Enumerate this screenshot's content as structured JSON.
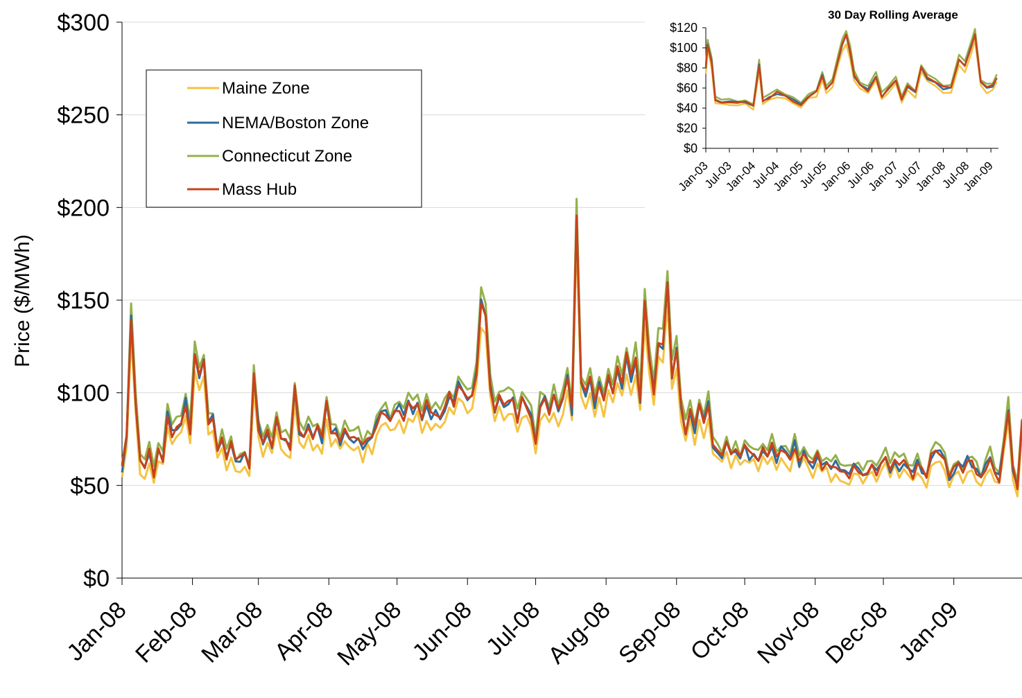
{
  "chart_data": [
    {
      "type": "line",
      "title": "",
      "ylabel": "Price ($/MWh)",
      "xlabel": "",
      "ylim": [
        0,
        300
      ],
      "ytick_labels": [
        "$0",
        "$50",
        "$100",
        "$150",
        "$200",
        "$250",
        "$300"
      ],
      "yticks": [
        0,
        50,
        100,
        150,
        200,
        250,
        300
      ],
      "x_tick_labels": [
        "Jan-08",
        "Feb-08",
        "Mar-08",
        "Apr-08",
        "May-08",
        "Jun-08",
        "Jul-08",
        "Aug-08",
        "Sep-08",
        "Oct-08",
        "Nov-08",
        "Dec-08",
        "Jan-09"
      ],
      "x_tick_dates": [
        "2008-01-01",
        "2008-02-01",
        "2008-03-01",
        "2008-04-01",
        "2008-05-01",
        "2008-06-01",
        "2008-07-01",
        "2008-08-01",
        "2008-09-01",
        "2008-10-01",
        "2008-11-01",
        "2008-12-01",
        "2009-01-01"
      ],
      "x_range": [
        "2008-01-01",
        "2009-01-31"
      ],
      "grid": "horizontal",
      "legend_position": "top-left",
      "mass_hub_anchor": [
        [
          "2008-01-01",
          58
        ],
        [
          "2008-01-03",
          75
        ],
        [
          "2008-01-05",
          140
        ],
        [
          "2008-01-07",
          95
        ],
        [
          "2008-01-09",
          62
        ],
        [
          "2008-01-11",
          60
        ],
        [
          "2008-01-13",
          68
        ],
        [
          "2008-01-15",
          56
        ],
        [
          "2008-01-17",
          70
        ],
        [
          "2008-01-19",
          64
        ],
        [
          "2008-01-21",
          88
        ],
        [
          "2008-01-23",
          78
        ],
        [
          "2008-01-25",
          82
        ],
        [
          "2008-01-27",
          84
        ],
        [
          "2008-01-29",
          95
        ],
        [
          "2008-01-31",
          80
        ],
        [
          "2008-02-02",
          122
        ],
        [
          "2008-02-04",
          108
        ],
        [
          "2008-02-06",
          117
        ],
        [
          "2008-02-08",
          84
        ],
        [
          "2008-02-10",
          86
        ],
        [
          "2008-02-12",
          68
        ],
        [
          "2008-02-14",
          75
        ],
        [
          "2008-02-16",
          64
        ],
        [
          "2008-02-18",
          72
        ],
        [
          "2008-02-20",
          62
        ],
        [
          "2008-02-22",
          64
        ],
        [
          "2008-02-24",
          66
        ],
        [
          "2008-02-26",
          60
        ],
        [
          "2008-02-28",
          108
        ],
        [
          "2008-03-01",
          82
        ],
        [
          "2008-03-03",
          72
        ],
        [
          "2008-03-05",
          78
        ],
        [
          "2008-03-07",
          72
        ],
        [
          "2008-03-09",
          86
        ],
        [
          "2008-03-11",
          76
        ],
        [
          "2008-03-13",
          74
        ],
        [
          "2008-03-15",
          70
        ],
        [
          "2008-03-17",
          102
        ],
        [
          "2008-03-19",
          80
        ],
        [
          "2008-03-21",
          78
        ],
        [
          "2008-03-23",
          82
        ],
        [
          "2008-03-25",
          76
        ],
        [
          "2008-03-27",
          80
        ],
        [
          "2008-03-29",
          74
        ],
        [
          "2008-03-31",
          94
        ],
        [
          "2008-04-02",
          78
        ],
        [
          "2008-04-04",
          80
        ],
        [
          "2008-04-06",
          74
        ],
        [
          "2008-04-08",
          80
        ],
        [
          "2008-04-10",
          76
        ],
        [
          "2008-04-12",
          74
        ],
        [
          "2008-04-14",
          76
        ],
        [
          "2008-04-16",
          70
        ],
        [
          "2008-04-18",
          76
        ],
        [
          "2008-04-20",
          74
        ],
        [
          "2008-04-22",
          82
        ],
        [
          "2008-04-24",
          88
        ],
        [
          "2008-04-26",
          90
        ],
        [
          "2008-04-28",
          84
        ],
        [
          "2008-04-30",
          88
        ],
        [
          "2008-05-02",
          92
        ],
        [
          "2008-05-04",
          86
        ],
        [
          "2008-05-06",
          94
        ],
        [
          "2008-05-08",
          90
        ],
        [
          "2008-05-10",
          96
        ],
        [
          "2008-05-12",
          86
        ],
        [
          "2008-05-14",
          94
        ],
        [
          "2008-05-16",
          88
        ],
        [
          "2008-05-18",
          90
        ],
        [
          "2008-05-20",
          86
        ],
        [
          "2008-05-22",
          92
        ],
        [
          "2008-05-24",
          98
        ],
        [
          "2008-05-26",
          94
        ],
        [
          "2008-05-28",
          104
        ],
        [
          "2008-05-30",
          100
        ],
        [
          "2008-06-01",
          96
        ],
        [
          "2008-06-03",
          100
        ],
        [
          "2008-06-05",
          112
        ],
        [
          "2008-06-07",
          148
        ],
        [
          "2008-06-09",
          140
        ],
        [
          "2008-06-11",
          104
        ],
        [
          "2008-06-13",
          90
        ],
        [
          "2008-06-15",
          98
        ],
        [
          "2008-06-17",
          94
        ],
        [
          "2008-06-19",
          96
        ],
        [
          "2008-06-21",
          95
        ],
        [
          "2008-06-23",
          86
        ],
        [
          "2008-06-25",
          96
        ],
        [
          "2008-06-27",
          94
        ],
        [
          "2008-06-29",
          88
        ],
        [
          "2008-07-01",
          74
        ],
        [
          "2008-07-03",
          94
        ],
        [
          "2008-07-05",
          96
        ],
        [
          "2008-07-07",
          90
        ],
        [
          "2008-07-09",
          98
        ],
        [
          "2008-07-11",
          90
        ],
        [
          "2008-07-13",
          98
        ],
        [
          "2008-07-15",
          110
        ],
        [
          "2008-07-17",
          90
        ],
        [
          "2008-07-19",
          197
        ],
        [
          "2008-07-21",
          104
        ],
        [
          "2008-07-23",
          100
        ],
        [
          "2008-07-25",
          108
        ],
        [
          "2008-07-27",
          94
        ],
        [
          "2008-07-29",
          104
        ],
        [
          "2008-07-31",
          96
        ],
        [
          "2008-08-02",
          108
        ],
        [
          "2008-08-04",
          100
        ],
        [
          "2008-08-06",
          112
        ],
        [
          "2008-08-08",
          104
        ],
        [
          "2008-08-10",
          120
        ],
        [
          "2008-08-12",
          108
        ],
        [
          "2008-08-14",
          120
        ],
        [
          "2008-08-16",
          96
        ],
        [
          "2008-08-18",
          150
        ],
        [
          "2008-08-20",
          118
        ],
        [
          "2008-08-22",
          100
        ],
        [
          "2008-08-24",
          128
        ],
        [
          "2008-08-26",
          126
        ],
        [
          "2008-08-28",
          158
        ],
        [
          "2008-08-30",
          110
        ],
        [
          "2008-09-01",
          125
        ],
        [
          "2008-09-03",
          92
        ],
        [
          "2008-09-05",
          80
        ],
        [
          "2008-09-07",
          92
        ],
        [
          "2008-09-09",
          80
        ],
        [
          "2008-09-11",
          92
        ],
        [
          "2008-09-13",
          84
        ],
        [
          "2008-09-15",
          94
        ],
        [
          "2008-09-17",
          72
        ],
        [
          "2008-09-19",
          70
        ],
        [
          "2008-09-21",
          66
        ],
        [
          "2008-09-23",
          72
        ],
        [
          "2008-09-25",
          66
        ],
        [
          "2008-09-27",
          70
        ],
        [
          "2008-09-29",
          64
        ],
        [
          "2008-10-01",
          70
        ],
        [
          "2008-10-03",
          66
        ],
        [
          "2008-10-05",
          68
        ],
        [
          "2008-10-07",
          64
        ],
        [
          "2008-10-09",
          70
        ],
        [
          "2008-10-11",
          66
        ],
        [
          "2008-10-13",
          72
        ],
        [
          "2008-10-15",
          64
        ],
        [
          "2008-10-17",
          70
        ],
        [
          "2008-10-19",
          66
        ],
        [
          "2008-10-21",
          64
        ],
        [
          "2008-10-23",
          72
        ],
        [
          "2008-10-25",
          62
        ],
        [
          "2008-10-27",
          68
        ],
        [
          "2008-10-29",
          62
        ],
        [
          "2008-10-31",
          60
        ],
        [
          "2008-11-02",
          66
        ],
        [
          "2008-11-04",
          60
        ],
        [
          "2008-11-06",
          62
        ],
        [
          "2008-11-08",
          58
        ],
        [
          "2008-11-10",
          62
        ],
        [
          "2008-11-12",
          58
        ],
        [
          "2008-11-14",
          58
        ],
        [
          "2008-11-16",
          56
        ],
        [
          "2008-11-18",
          60
        ],
        [
          "2008-11-20",
          58
        ],
        [
          "2008-11-22",
          56
        ],
        [
          "2008-11-24",
          58
        ],
        [
          "2008-11-26",
          60
        ],
        [
          "2008-11-28",
          56
        ],
        [
          "2008-11-30",
          64
        ],
        [
          "2008-12-02",
          66
        ],
        [
          "2008-12-04",
          58
        ],
        [
          "2008-12-06",
          64
        ],
        [
          "2008-12-08",
          60
        ],
        [
          "2008-12-10",
          62
        ],
        [
          "2008-12-12",
          58
        ],
        [
          "2008-12-14",
          56
        ],
        [
          "2008-12-16",
          64
        ],
        [
          "2008-12-18",
          58
        ],
        [
          "2008-12-20",
          54
        ],
        [
          "2008-12-22",
          66
        ],
        [
          "2008-12-24",
          70
        ],
        [
          "2008-12-26",
          68
        ],
        [
          "2008-12-28",
          64
        ],
        [
          "2008-12-30",
          54
        ],
        [
          "2009-01-01",
          58
        ],
        [
          "2009-01-03",
          62
        ],
        [
          "2009-01-05",
          58
        ],
        [
          "2009-01-07",
          64
        ],
        [
          "2009-01-09",
          62
        ],
        [
          "2009-01-11",
          58
        ],
        [
          "2009-01-13",
          54
        ],
        [
          "2009-01-15",
          60
        ],
        [
          "2009-01-17",
          66
        ],
        [
          "2009-01-19",
          56
        ],
        [
          "2009-01-21",
          54
        ],
        [
          "2009-01-23",
          74
        ],
        [
          "2009-01-25",
          92
        ],
        [
          "2009-01-27",
          60
        ],
        [
          "2009-01-29",
          48
        ],
        [
          "2009-01-31",
          84
        ]
      ],
      "series": [
        {
          "name": "Maine Zone",
          "color": "#F5C342"
        },
        {
          "name": "NEMA/Boston Zone",
          "color": "#2E6C9E"
        },
        {
          "name": "Connecticut Zone",
          "color": "#94B04B"
        },
        {
          "name": "Mass Hub",
          "color": "#C8431A"
        }
      ]
    },
    {
      "type": "line",
      "title": "30 Day Rolling Average",
      "ylim": [
        0,
        120
      ],
      "ytick_labels": [
        "$0",
        "$20",
        "$40",
        "$60",
        "$80",
        "$100",
        "$120"
      ],
      "yticks": [
        0,
        20,
        40,
        60,
        80,
        100,
        120
      ],
      "x_tick_labels": [
        "Jan-03",
        "Jul-03",
        "Jan-04",
        "Jul-04",
        "Jan-05",
        "Jul-05",
        "Jan-06",
        "Jul-06",
        "Jan-07",
        "Jul-07",
        "Jan-08",
        "Jul-08",
        "Jan-09"
      ],
      "x_tick_dates": [
        "2003-01-01",
        "2003-07-01",
        "2004-01-01",
        "2004-07-01",
        "2005-01-01",
        "2005-07-01",
        "2006-01-01",
        "2006-07-01",
        "2007-01-01",
        "2007-07-01",
        "2008-01-01",
        "2008-07-01",
        "2009-01-01"
      ],
      "x_range": [
        "2003-01-01",
        "2009-02-28"
      ],
      "grid": "none",
      "mass_hub_anchor": [
        [
          "2003-01-01",
          80
        ],
        [
          "2003-01-15",
          104
        ],
        [
          "2003-02-15",
          86
        ],
        [
          "2003-03-15",
          48
        ],
        [
          "2003-05-01",
          46
        ],
        [
          "2003-07-01",
          47
        ],
        [
          "2003-09-01",
          45
        ],
        [
          "2003-11-01",
          46
        ],
        [
          "2004-01-01",
          42
        ],
        [
          "2004-02-15",
          83
        ],
        [
          "2004-03-15",
          48
        ],
        [
          "2004-05-01",
          50
        ],
        [
          "2004-07-01",
          55
        ],
        [
          "2004-09-01",
          52
        ],
        [
          "2004-11-01",
          48
        ],
        [
          "2005-01-01",
          43
        ],
        [
          "2005-03-01",
          52
        ],
        [
          "2005-05-01",
          56
        ],
        [
          "2005-06-15",
          72
        ],
        [
          "2005-07-15",
          60
        ],
        [
          "2005-09-01",
          66
        ],
        [
          "2005-10-15",
          88
        ],
        [
          "2005-11-15",
          104
        ],
        [
          "2005-12-15",
          112
        ],
        [
          "2006-01-15",
          96
        ],
        [
          "2006-02-15",
          72
        ],
        [
          "2006-04-01",
          62
        ],
        [
          "2006-06-01",
          58
        ],
        [
          "2006-08-01",
          72
        ],
        [
          "2006-09-15",
          52
        ],
        [
          "2006-11-01",
          58
        ],
        [
          "2007-01-01",
          68
        ],
        [
          "2007-02-15",
          48
        ],
        [
          "2007-04-01",
          62
        ],
        [
          "2007-06-01",
          55
        ],
        [
          "2007-07-15",
          80
        ],
        [
          "2007-09-01",
          70
        ],
        [
          "2007-11-01",
          66
        ],
        [
          "2008-01-01",
          60
        ],
        [
          "2008-03-01",
          60
        ],
        [
          "2008-05-01",
          88
        ],
        [
          "2008-06-15",
          82
        ],
        [
          "2008-08-01",
          100
        ],
        [
          "2008-09-01",
          114
        ],
        [
          "2008-10-15",
          66
        ],
        [
          "2008-12-01",
          60
        ],
        [
          "2009-01-15",
          62
        ],
        [
          "2009-02-15",
          70
        ]
      ],
      "series": [
        {
          "name": "Maine Zone",
          "color": "#F5C342"
        },
        {
          "name": "NEMA/Boston Zone",
          "color": "#2E6C9E"
        },
        {
          "name": "Connecticut Zone",
          "color": "#94B04B"
        },
        {
          "name": "Mass Hub",
          "color": "#C8431A"
        }
      ]
    }
  ],
  "legend": {
    "items": [
      "Maine Zone",
      "NEMA/Boston Zone",
      "Connecticut Zone",
      "Mass Hub"
    ]
  }
}
